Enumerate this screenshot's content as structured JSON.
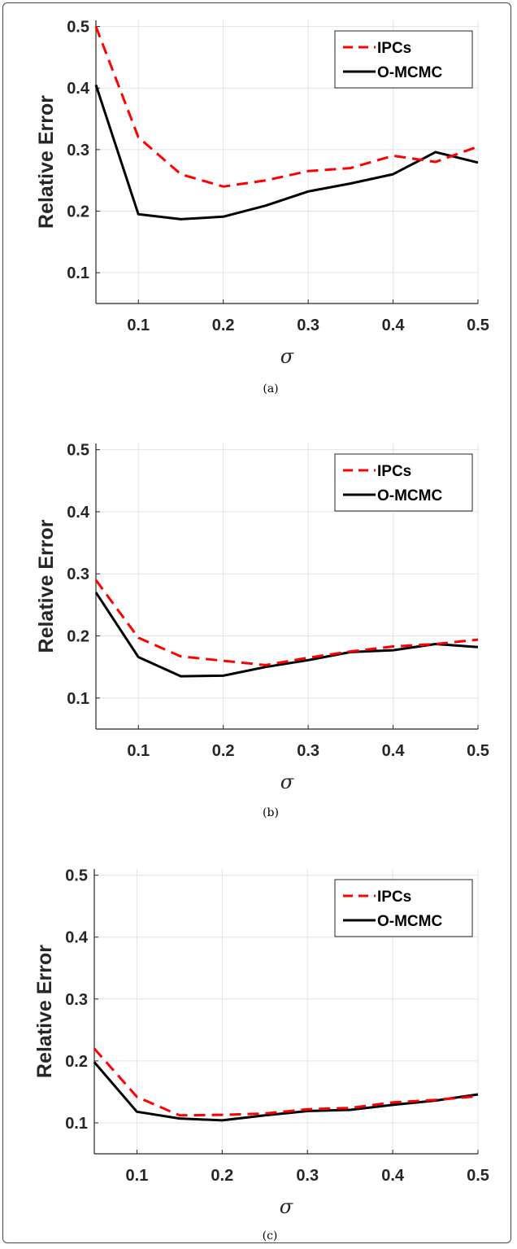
{
  "colors": {
    "ipcs": "#ff0000",
    "omcmc": "#000000",
    "grid": "#e3e3e3",
    "axis": "#262626"
  },
  "chart_data": [
    {
      "type": "line",
      "caption": "(a)",
      "xlabel": "σ",
      "ylabel": "Relative Error",
      "xlim": [
        0.05,
        0.5
      ],
      "ylim": [
        0.05,
        0.51
      ],
      "grid": true,
      "legend_position": "top-right",
      "xticks": [
        "0.1",
        "0.2",
        "0.3",
        "0.4",
        "0.5"
      ],
      "yticks": [
        "0.1",
        "0.2",
        "0.3",
        "0.4",
        "0.5"
      ],
      "x": [
        0.05,
        0.1,
        0.15,
        0.2,
        0.25,
        0.3,
        0.35,
        0.4,
        0.45,
        0.5
      ],
      "series": [
        {
          "name": "IPCs",
          "style": "dashed",
          "values": [
            0.5,
            0.32,
            0.26,
            0.24,
            0.25,
            0.265,
            0.27,
            0.29,
            0.28,
            0.305
          ]
        },
        {
          "name": "O-MCMC",
          "style": "solid",
          "values": [
            0.405,
            0.195,
            0.187,
            0.191,
            0.209,
            0.232,
            0.245,
            0.26,
            0.296,
            0.279
          ]
        }
      ]
    },
    {
      "type": "line",
      "caption": "(b)",
      "xlabel": "σ",
      "ylabel": "Relative Error",
      "xlim": [
        0.05,
        0.5
      ],
      "ylim": [
        0.05,
        0.51
      ],
      "grid": true,
      "legend_position": "top-right",
      "xticks": [
        "0.1",
        "0.2",
        "0.3",
        "0.4",
        "0.5"
      ],
      "yticks": [
        "0.1",
        "0.2",
        "0.3",
        "0.4",
        "0.5"
      ],
      "x": [
        0.05,
        0.1,
        0.15,
        0.2,
        0.25,
        0.3,
        0.35,
        0.4,
        0.45,
        0.5
      ],
      "series": [
        {
          "name": "IPCs",
          "style": "dashed",
          "values": [
            0.29,
            0.197,
            0.167,
            0.16,
            0.153,
            0.165,
            0.175,
            0.183,
            0.187,
            0.194
          ]
        },
        {
          "name": "O-MCMC",
          "style": "solid",
          "values": [
            0.27,
            0.166,
            0.135,
            0.136,
            0.15,
            0.161,
            0.174,
            0.177,
            0.187,
            0.182
          ]
        }
      ]
    },
    {
      "type": "line",
      "caption": "(c)",
      "xlabel": "σ",
      "ylabel": "Relative Error",
      "xlim": [
        0.05,
        0.5
      ],
      "ylim": [
        0.05,
        0.51
      ],
      "grid": true,
      "legend_position": "top-right",
      "xticks": [
        "0.1",
        "0.2",
        "0.3",
        "0.4",
        "0.5"
      ],
      "yticks": [
        "0.1",
        "0.2",
        "0.3",
        "0.4",
        "0.5"
      ],
      "x": [
        0.05,
        0.1,
        0.15,
        0.2,
        0.25,
        0.3,
        0.35,
        0.4,
        0.45,
        0.5
      ],
      "series": [
        {
          "name": "IPCs",
          "style": "dashed",
          "values": [
            0.22,
            0.142,
            0.112,
            0.113,
            0.115,
            0.122,
            0.124,
            0.133,
            0.137,
            0.143
          ]
        },
        {
          "name": "O-MCMC",
          "style": "solid",
          "values": [
            0.198,
            0.118,
            0.107,
            0.104,
            0.112,
            0.119,
            0.121,
            0.129,
            0.136,
            0.146
          ]
        }
      ]
    }
  ]
}
